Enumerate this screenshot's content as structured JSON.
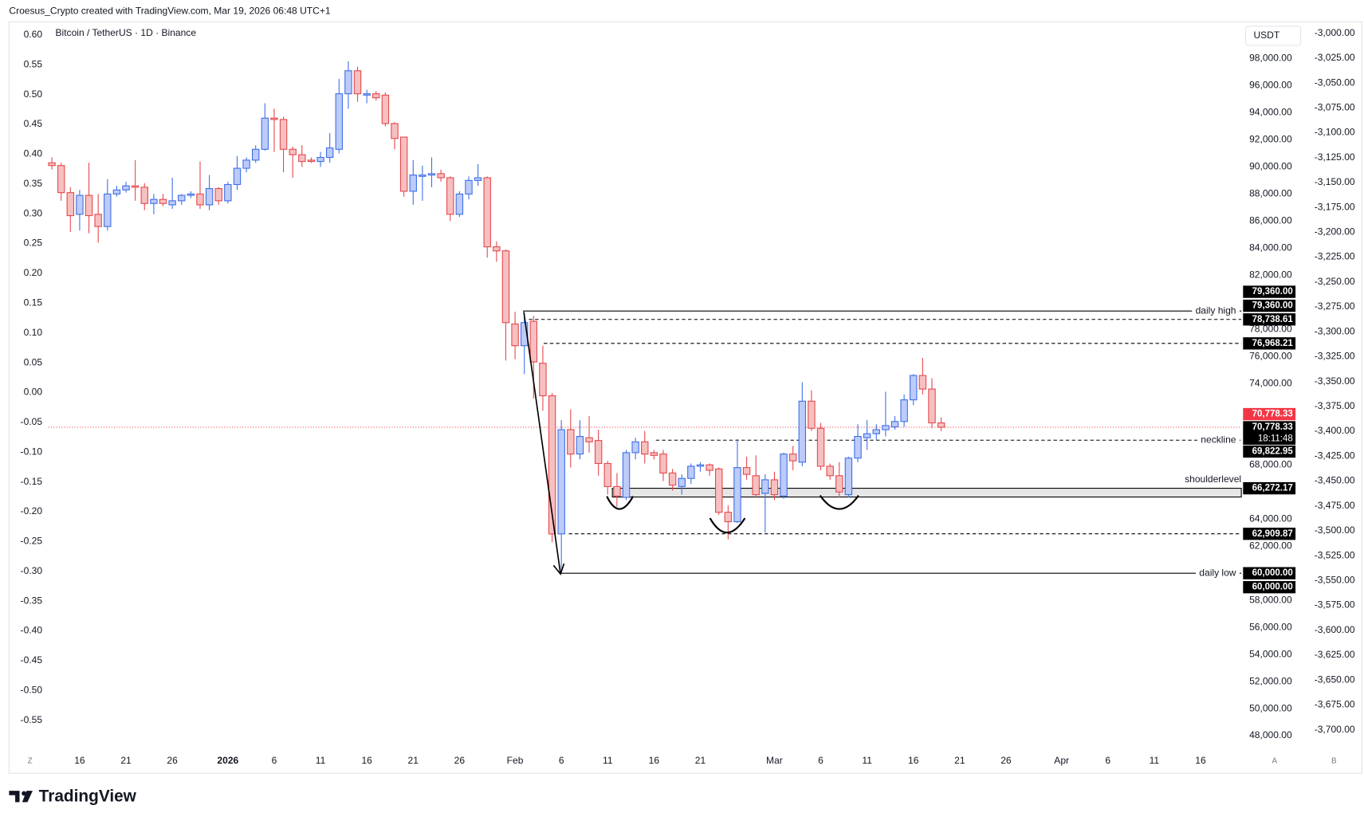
{
  "chart_data": {
    "type": "candlestick",
    "credit": "Croesus_Crypto created with TradingView.com, Mar 19, 2026 06:48 UTC+1",
    "title": "Bitcoin / TetherUS · 1D · Binance",
    "currency": "USDT",
    "brand": "TradingView",
    "corner_labels": [
      "Z",
      "A",
      "B"
    ],
    "up_color": "#3f6fe8",
    "up_fill": "#bccbf7",
    "down_color": "#e5484d",
    "down_fill": "#f7c0c0",
    "grid": false,
    "open": [
      90300,
      90100,
      88100,
      86500,
      87900,
      86500,
      85600,
      88000,
      88300,
      88600,
      88500,
      87300,
      87600,
      87200,
      87500,
      87900,
      88000,
      87200,
      88400,
      87500,
      88700,
      89900,
      90500,
      91300,
      93600,
      93500,
      91300,
      90900,
      90500,
      90400,
      90700,
      91300,
      95400,
      97100,
      95300,
      95400,
      95300,
      93200,
      92200,
      88200,
      89300,
      89400,
      89500,
      89200,
      86500,
      88000,
      89000,
      89200,
      84100,
      83800,
      78400,
      76800,
      78600,
      75500,
      73100,
      62900,
      70600,
      68800,
      70000,
      69800,
      68100,
      66400,
      65600,
      68900,
      69700,
      68900,
      68800,
      67400,
      66400,
      67000,
      67900,
      68000,
      67700,
      64500,
      63800,
      67800,
      67200,
      65900,
      66900,
      65700,
      68800,
      68200,
      72700,
      70700,
      67900,
      67200,
      65800,
      68500,
      70000,
      70300,
      70600,
      70800,
      71200,
      72800,
      74600,
      73600,
      71100
    ],
    "high": [
      90700,
      90300,
      88500,
      88300,
      90300,
      88000,
      89100,
      88600,
      88900,
      90500,
      88800,
      88000,
      88000,
      89200,
      88000,
      88200,
      90400,
      89400,
      88500,
      88900,
      90800,
      90700,
      91600,
      94700,
      94300,
      93700,
      91500,
      91600,
      90700,
      91100,
      92500,
      96500,
      97800,
      97400,
      95700,
      95600,
      95500,
      93300,
      92200,
      90500,
      90100,
      90700,
      89800,
      89300,
      88200,
      89300,
      90200,
      89300,
      84500,
      83900,
      79300,
      79200,
      79000,
      76800,
      73300,
      71300,
      72100,
      71300,
      71600,
      70600,
      68300,
      67400,
      69100,
      70000,
      70500,
      69100,
      69100,
      67700,
      67300,
      68100,
      68200,
      68100,
      67800,
      65000,
      69900,
      68600,
      68700,
      67300,
      67500,
      68900,
      69400,
      74100,
      73500,
      71100,
      68100,
      68200,
      68600,
      71000,
      71300,
      71000,
      73400,
      71600,
      73200,
      74700,
      75900,
      74400,
      71500
    ],
    "low": [
      89800,
      87500,
      85200,
      85300,
      85100,
      84400,
      85300,
      87800,
      88100,
      87500,
      86800,
      86500,
      87100,
      86900,
      87200,
      87700,
      86900,
      86800,
      87200,
      87300,
      88300,
      89600,
      90300,
      91200,
      91100,
      89600,
      89200,
      90000,
      90300,
      90000,
      90300,
      91000,
      94300,
      94800,
      94700,
      94900,
      93000,
      91300,
      87800,
      87200,
      87500,
      88500,
      88900,
      86000,
      86300,
      87600,
      88600,
      83300,
      83000,
      75700,
      75800,
      74700,
      72900,
      72000,
      62300,
      60000,
      67800,
      68400,
      68900,
      67200,
      65800,
      64900,
      65400,
      68400,
      68100,
      68400,
      66800,
      66100,
      65800,
      66600,
      67500,
      67200,
      64300,
      62500,
      63700,
      66900,
      65600,
      63000,
      65400,
      65500,
      67600,
      67900,
      70500,
      67600,
      66900,
      65600,
      65600,
      68200,
      69100,
      69800,
      70100,
      70600,
      70800,
      72400,
      73200,
      70700,
      70500
    ],
    "close": [
      90100,
      88100,
      86400,
      87900,
      86400,
      85600,
      88000,
      88300,
      88600,
      88500,
      87300,
      87600,
      87300,
      87500,
      87900,
      88000,
      87200,
      88400,
      87500,
      88700,
      89900,
      90500,
      91300,
      93600,
      93500,
      91300,
      90900,
      90400,
      90400,
      90700,
      91400,
      95400,
      97100,
      95400,
      95400,
      95100,
      93200,
      92100,
      88200,
      89400,
      89400,
      89500,
      89200,
      86500,
      88000,
      89000,
      89200,
      84100,
      83800,
      78500,
      76800,
      78500,
      75600,
      73100,
      62900,
      70600,
      68800,
      70100,
      69700,
      68100,
      66400,
      65700,
      68900,
      69700,
      68800,
      68700,
      67400,
      66500,
      67000,
      67900,
      68000,
      67600,
      64500,
      63800,
      67800,
      67300,
      65800,
      66900,
      65800,
      68800,
      68300,
      72700,
      70700,
      67900,
      67200,
      66000,
      68500,
      70100,
      70300,
      70600,
      70900,
      71200,
      72800,
      74600,
      73600,
      71100,
      70778.33
    ],
    "xlim": [
      -4.62,
      128.4
    ],
    "xticks": [
      {
        "value": 3,
        "label": "16"
      },
      {
        "value": 8,
        "label": "21"
      },
      {
        "value": 13,
        "label": "26"
      },
      {
        "value": 19,
        "label": "2026"
      },
      {
        "value": 24,
        "label": "6"
      },
      {
        "value": 29,
        "label": "11"
      },
      {
        "value": 34,
        "label": "16"
      },
      {
        "value": 39,
        "label": "21"
      },
      {
        "value": 44,
        "label": "26"
      },
      {
        "value": 50,
        "label": "Feb"
      },
      {
        "value": 55,
        "label": "6"
      },
      {
        "value": 60,
        "label": "11"
      },
      {
        "value": 65,
        "label": "16"
      },
      {
        "value": 70,
        "label": "21"
      },
      {
        "value": 78,
        "label": "Mar"
      },
      {
        "value": 83,
        "label": "6"
      },
      {
        "value": 88,
        "label": "11"
      },
      {
        "value": 93,
        "label": "16"
      },
      {
        "value": 98,
        "label": "21"
      },
      {
        "value": 103,
        "label": "26"
      },
      {
        "value": 109,
        "label": "Apr"
      },
      {
        "value": 114,
        "label": "6"
      },
      {
        "value": 119,
        "label": "11"
      },
      {
        "value": 124,
        "label": "16"
      }
    ],
    "ylim": [
      46968,
      100710
    ],
    "yticks": [
      {
        "value": 98000,
        "label": "98,000.00"
      },
      {
        "value": 96000,
        "label": "96,000.00"
      },
      {
        "value": 94000,
        "label": "94,000.00"
      },
      {
        "value": 92000,
        "label": "92,000.00"
      },
      {
        "value": 90000,
        "label": "90,000.00"
      },
      {
        "value": 88000,
        "label": "88,000.00"
      },
      {
        "value": 86000,
        "label": "86,000.00"
      },
      {
        "value": 84000,
        "label": "84,000.00"
      },
      {
        "value": 82000,
        "label": "82,000.00"
      },
      {
        "value": 78000,
        "label": "78,000.00"
      },
      {
        "value": 76000,
        "label": "76,000.00"
      },
      {
        "value": 74000,
        "label": "74,000.00"
      },
      {
        "value": 68000,
        "label": "68,000.00"
      },
      {
        "value": 64000,
        "label": "64,000.00"
      },
      {
        "value": 62000,
        "label": "62,000.00"
      },
      {
        "value": 58000,
        "label": "58,000.00"
      },
      {
        "value": 56000,
        "label": "56,000.00"
      },
      {
        "value": 54000,
        "label": "54,000.00"
      },
      {
        "value": 52000,
        "label": "52,000.00"
      },
      {
        "value": 50000,
        "label": "50,000.00"
      },
      {
        "value": 48000,
        "label": "48,000.00"
      }
    ],
    "y2lim": [
      -0.5994,
      0.622
    ],
    "y2ticks": [
      {
        "value": 0.6,
        "label": "0.60"
      },
      {
        "value": 0.55,
        "label": "0.55"
      },
      {
        "value": 0.5,
        "label": "0.50"
      },
      {
        "value": 0.45,
        "label": "0.45"
      },
      {
        "value": 0.4,
        "label": "0.40"
      },
      {
        "value": 0.35,
        "label": "0.35"
      },
      {
        "value": 0.3,
        "label": "0.30"
      },
      {
        "value": 0.25,
        "label": "0.25"
      },
      {
        "value": 0.2,
        "label": "0.20"
      },
      {
        "value": 0.15,
        "label": "0.15"
      },
      {
        "value": 0.1,
        "label": "0.10"
      },
      {
        "value": 0.05,
        "label": "0.05"
      },
      {
        "value": 0,
        "label": "0.00"
      },
      {
        "value": -0.05,
        "label": "-0.05"
      },
      {
        "value": -0.1,
        "label": "-0.10"
      },
      {
        "value": -0.15,
        "label": "-0.15"
      },
      {
        "value": -0.2,
        "label": "-0.20"
      },
      {
        "value": -0.25,
        "label": "-0.25"
      },
      {
        "value": -0.3,
        "label": "-0.30"
      },
      {
        "value": -0.35,
        "label": "-0.35"
      },
      {
        "value": -0.4,
        "label": "-0.40"
      },
      {
        "value": -0.45,
        "label": "-0.45"
      },
      {
        "value": -0.5,
        "label": "-0.50"
      },
      {
        "value": -0.55,
        "label": "-0.55"
      }
    ],
    "y3lim": [
      -3720,
      -2988.6
    ],
    "y3ticks": [
      {
        "value": -3000,
        "label": "-3,000.00"
      },
      {
        "value": -3025,
        "label": "-3,025.00"
      },
      {
        "value": -3050,
        "label": "-3,050.00"
      },
      {
        "value": -3075,
        "label": "-3,075.00"
      },
      {
        "value": -3100,
        "label": "-3,100.00"
      },
      {
        "value": -3125,
        "label": "-3,125.00"
      },
      {
        "value": -3150,
        "label": "-3,150.00"
      },
      {
        "value": -3175,
        "label": "-3,175.00"
      },
      {
        "value": -3200,
        "label": "-3,200.00"
      },
      {
        "value": -3225,
        "label": "-3,225.00"
      },
      {
        "value": -3250,
        "label": "-3,250.00"
      },
      {
        "value": -3275,
        "label": "-3,275.00"
      },
      {
        "value": -3300,
        "label": "-3,300.00"
      },
      {
        "value": -3325,
        "label": "-3,325.00"
      },
      {
        "value": -3350,
        "label": "-3,350.00"
      },
      {
        "value": -3375,
        "label": "-3,375.00"
      },
      {
        "value": -3400,
        "label": "-3,400.00"
      },
      {
        "value": -3425,
        "label": "-3,425.00"
      },
      {
        "value": -3450,
        "label": "-3,450.00"
      },
      {
        "value": -3475,
        "label": "-3,475.00"
      },
      {
        "value": -3500,
        "label": "-3,500.00"
      },
      {
        "value": -3525,
        "label": "-3,525.00"
      },
      {
        "value": -3550,
        "label": "-3,550.00"
      },
      {
        "value": -3575,
        "label": "-3,575.00"
      },
      {
        "value": -3600,
        "label": "-3,600.00"
      },
      {
        "value": -3625,
        "label": "-3,625.00"
      },
      {
        "value": -3650,
        "label": "-3,650.00"
      },
      {
        "value": -3675,
        "label": "-3,675.00"
      },
      {
        "value": -3700,
        "label": "-3,700.00"
      }
    ],
    "levels": [
      {
        "value": 79360,
        "style": "solid",
        "text": "daily high"
      },
      {
        "value": 78738.61,
        "style": "dashed"
      },
      {
        "value": 76968.21,
        "style": "dashed"
      },
      {
        "value": 69822.95,
        "style": "dashed",
        "text": "neckline"
      },
      {
        "value": 62909.87,
        "style": "dashed"
      },
      {
        "value": 60000,
        "style": "solid",
        "text": "daily low"
      }
    ],
    "band": {
      "value": 66272.17,
      "text": "shoulderlevel"
    },
    "current_price": 70778.33,
    "current_color": "#f23645",
    "countdown": "18:11:48",
    "price_tags": [
      {
        "value": 79360,
        "label": "79,360.00",
        "color": "#000000"
      },
      {
        "value": 79360,
        "label": "79,360.00",
        "color": "#000000"
      },
      {
        "value": 78738.61,
        "label": "78,738.61",
        "color": "#000000"
      },
      {
        "value": 76968.21,
        "label": "76,968.21",
        "color": "#000000"
      },
      {
        "value": 70778.33,
        "label": "70,778.33",
        "color": "#f23645"
      },
      {
        "value": 70778.33,
        "label": "70,778.33",
        "color": "#000000"
      },
      {
        "value": 69822.95,
        "label": "69,822.95",
        "color": "#000000"
      },
      {
        "value": 66272.17,
        "label": "66,272.17",
        "color": "#000000"
      },
      {
        "value": 62909.87,
        "label": "62,909.87",
        "color": "#000000"
      },
      {
        "value": 60000,
        "label": "60,000.00",
        "color": "#000000"
      },
      {
        "value": 60000,
        "label": "60,000.00",
        "color": "#000000"
      }
    ]
  }
}
